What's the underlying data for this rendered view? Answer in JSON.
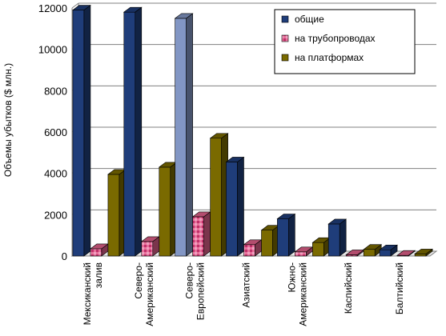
{
  "chart_data": {
    "type": "bar",
    "ylabel": "Объемы убытков ($ млн.)",
    "ylim": [
      0,
      12000
    ],
    "yticks": [
      "0",
      "2000",
      "4000",
      "6000",
      "8000",
      "10000",
      "12000"
    ],
    "grid": true,
    "legend_position": "top-right",
    "categories": [
      "Мексиканский залив",
      "Северо-Американский",
      "Северо-Европейский",
      "Азиатский",
      "Южно-Американский",
      "Каспийский",
      "Балтийский"
    ],
    "category_label_lines": [
      [
        "Мексиканский",
        "залив"
      ],
      [
        "Северо-",
        "Американский"
      ],
      [
        "Северо-",
        "Европейский"
      ],
      [
        "Азиатский"
      ],
      [
        "Южно-",
        "Американский"
      ],
      [
        "Каспийский"
      ],
      [
        "Балтийский"
      ]
    ],
    "series": [
      {
        "name": "общие",
        "values": [
          11900,
          11800,
          11500,
          4550,
          1800,
          1550,
          300
        ],
        "color": "#1f3d7a"
      },
      {
        "name": "на трубопроводах",
        "values": [
          350,
          700,
          1900,
          550,
          200,
          60,
          30
        ],
        "color": "#e0608a"
      },
      {
        "name": "на платформах",
        "values": [
          3950,
          4300,
          5700,
          1250,
          650,
          320,
          100
        ],
        "color": "#7a6a00"
      }
    ],
    "highlight_bar": {
      "series": 0,
      "category": 2,
      "color": "#8296c4"
    }
  }
}
